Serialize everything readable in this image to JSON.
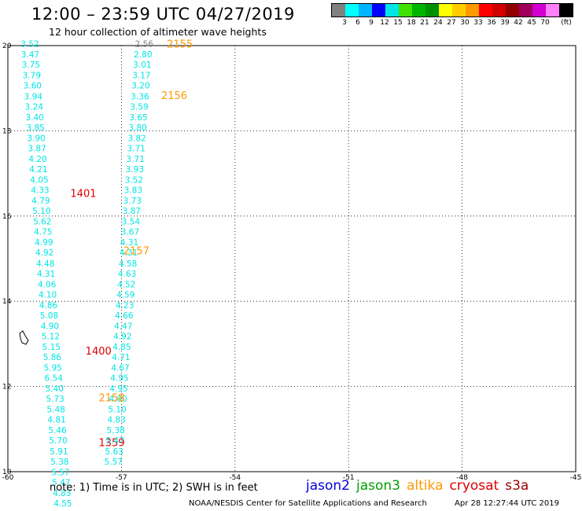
{
  "header": {
    "title": "12:00 – 23:59 UTC 04/27/2019",
    "subtitle": "12 hour collection of altimeter wave heights"
  },
  "legend": {
    "unit": "(ft)",
    "colors": [
      "#808080",
      "#00ffff",
      "#00b4ff",
      "#0000ff",
      "#00e6e6",
      "#40e000",
      "#00b400",
      "#009000",
      "#ffff00",
      "#ffcc00",
      "#ff9900",
      "#ff0000",
      "#d00000",
      "#900000",
      "#a0005a",
      "#d000d0",
      "#ff80ff",
      "#000000"
    ],
    "labels": [
      "3",
      "6",
      "9",
      "12",
      "15",
      "18",
      "21",
      "24",
      "27",
      "30",
      "33",
      "36",
      "39",
      "42",
      "45",
      "70"
    ]
  },
  "map": {
    "lon_range": [
      -60,
      -45
    ],
    "lat_range": [
      10,
      20
    ],
    "lon_ticks": [
      "-60",
      "-57",
      "-54",
      "-51",
      "-48",
      "-45"
    ],
    "lat_ticks": [
      "20",
      "18",
      "16",
      "14",
      "12",
      "10"
    ],
    "grid": true,
    "track_color": "#00e5e5",
    "tracks": [
      {
        "values": [
          "3.52",
          "3.47",
          "3.75",
          "3.79",
          "3.60",
          "3.94",
          "3.24",
          "3.40",
          "3.85",
          "3.90",
          "3.87",
          "4.20",
          "4.21",
          "4.05",
          "4.33",
          "4.79",
          "5.10",
          "5.62",
          "4.75",
          "4.99",
          "4.92",
          "4.48",
          "4.31",
          "4.06",
          "4.10",
          "4.86",
          "5.08",
          "4.90",
          "5.12",
          "5.15",
          "5.86",
          "5.95",
          "6.54",
          "5.40",
          "5.73",
          "5.48",
          "4.81",
          "5.46",
          "5.70",
          "5.91",
          "5.38",
          "5.57",
          "5.47",
          "4.83",
          "4.55"
        ],
        "lon": [
          -59.42,
          -59.41,
          -59.39,
          -59.37,
          -59.35,
          -59.33,
          -59.31,
          -59.29,
          -59.27,
          -59.25,
          -59.23,
          -59.21,
          -59.19,
          -59.17,
          -59.15,
          -59.13,
          -59.11,
          -59.09,
          -59.07,
          -59.05,
          -59.03,
          -59.01,
          -58.99,
          -58.97,
          -58.95,
          -58.93,
          -58.91,
          -58.89,
          -58.87,
          -58.85,
          -58.83,
          -58.81,
          -58.79,
          -58.77,
          -58.75,
          -58.73,
          -58.71,
          -58.69,
          -58.67,
          -58.65,
          -58.63,
          -58.61,
          -58.59,
          -58.57,
          -58.55
        ],
        "lat": [
          19.97,
          19.72,
          19.48,
          19.23,
          18.99,
          18.74,
          18.5,
          18.25,
          18.01,
          17.76,
          17.52,
          17.27,
          17.03,
          16.78,
          16.54,
          16.29,
          16.05,
          15.8,
          15.56,
          15.31,
          15.07,
          14.82,
          14.58,
          14.33,
          14.09,
          13.84,
          13.6,
          13.35,
          13.11,
          12.86,
          12.62,
          12.37,
          12.13,
          11.88,
          11.64,
          11.39,
          11.15,
          10.9,
          10.66,
          10.41,
          10.17,
          9.92,
          9.68,
          9.43,
          9.19
        ],
        "time_labels": [
          {
            "text": "1401",
            "color": "#e00000",
            "lon": -58.35,
            "lat": 16.45
          },
          {
            "text": "1400",
            "color": "#e00000",
            "lon": -57.95,
            "lat": 12.75
          },
          {
            "text": "1359",
            "color": "#e00000",
            "lon": -57.6,
            "lat": 10.6
          }
        ]
      },
      {
        "values": [
          "2.80",
          "3.01",
          "3.17",
          "3.20",
          "3.36",
          "3.59",
          "3.65",
          "3.80",
          "3.82",
          "3.71",
          "3.71",
          "3.93",
          "3.52",
          "3.83",
          "3.73",
          "3.87",
          "3.54",
          "3.67",
          "4.31",
          "4.31",
          "4.58",
          "4.63",
          "4.52",
          "4.59",
          "4.23",
          "4.66",
          "4.47",
          "4.92",
          "4.85",
          "4.71",
          "4.67",
          "4.95",
          "4.95",
          "4.80",
          "5.10",
          "4.83",
          "5.38",
          "5.47",
          "5.63",
          "5.57"
        ],
        "lon": [
          -56.43,
          -56.45,
          -56.47,
          -56.49,
          -56.51,
          -56.53,
          -56.55,
          -56.57,
          -56.59,
          -56.61,
          -56.63,
          -56.65,
          -56.67,
          -56.69,
          -56.71,
          -56.73,
          -56.75,
          -56.77,
          -56.79,
          -56.81,
          -56.83,
          -56.85,
          -56.87,
          -56.89,
          -56.91,
          -56.93,
          -56.95,
          -56.97,
          -56.99,
          -57.01,
          -57.03,
          -57.05,
          -57.07,
          -57.09,
          -57.11,
          -57.13,
          -57.15,
          -57.17,
          -57.19,
          -57.21
        ],
        "lat": [
          19.72,
          19.48,
          19.23,
          18.99,
          18.74,
          18.5,
          18.25,
          18.01,
          17.76,
          17.52,
          17.27,
          17.03,
          16.78,
          16.54,
          16.29,
          16.05,
          15.8,
          15.56,
          15.31,
          15.07,
          14.82,
          14.58,
          14.33,
          14.09,
          13.84,
          13.6,
          13.35,
          13.11,
          12.86,
          12.62,
          12.37,
          12.13,
          11.88,
          11.64,
          11.39,
          11.15,
          10.9,
          10.66,
          10.41,
          10.17
        ],
        "time_labels": [
          {
            "text": "2155",
            "color": "#ff9900",
            "lon": -55.8,
            "lat": 19.95
          },
          {
            "text": "2156",
            "color": "#ff9900",
            "lon": -55.95,
            "lat": 18.75
          },
          {
            "text": "2157",
            "color": "#ff9900",
            "lon": -56.95,
            "lat": 15.1
          },
          {
            "text": "2158",
            "color": "#ff9900",
            "lon": -57.6,
            "lat": 11.65
          }
        ]
      }
    ],
    "extra_points": [
      {
        "text": "2.56",
        "color": "#808080",
        "lon": -56.4,
        "lat": 19.97
      }
    ]
  },
  "footer": {
    "note": "note:  1) Time is in UTC; 2) SWH is in feet",
    "satellites": [
      {
        "name": "jason2",
        "color": "#0000e0"
      },
      {
        "name": "jason3",
        "color": "#00a000"
      },
      {
        "name": "altika",
        "color": "#ff9900"
      },
      {
        "name": "cryosat",
        "color": "#e00000"
      },
      {
        "name": "s3a",
        "color": "#a00000"
      }
    ],
    "credit": "NOAA/NESDIS Center for Satellite Applications and Research",
    "timestamp": "Apr 28 12:27:44 UTC 2019"
  }
}
